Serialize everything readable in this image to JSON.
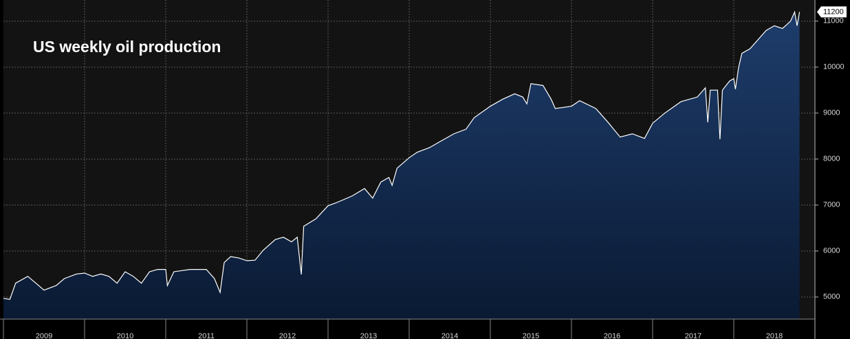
{
  "chart_data": {
    "type": "area",
    "title": "US weekly oil production",
    "x": [
      2009.0,
      2009.08,
      2009.15,
      2009.3,
      2009.4,
      2009.5,
      2009.65,
      2009.75,
      2009.9,
      2010.0,
      2010.1,
      2010.2,
      2010.3,
      2010.4,
      2010.5,
      2010.6,
      2010.7,
      2010.8,
      2010.9,
      2011.0,
      2011.02,
      2011.1,
      2011.3,
      2011.5,
      2011.6,
      2011.67,
      2011.72,
      2011.8,
      2011.9,
      2012.0,
      2012.1,
      2012.2,
      2012.35,
      2012.45,
      2012.55,
      2012.62,
      2012.67,
      2012.7,
      2012.85,
      2013.0,
      2013.1,
      2013.3,
      2013.45,
      2013.55,
      2013.65,
      2013.75,
      2013.79,
      2013.85,
      2014.0,
      2014.1,
      2014.25,
      2014.4,
      2014.55,
      2014.7,
      2014.8,
      2015.0,
      2015.15,
      2015.3,
      2015.4,
      2015.45,
      2015.5,
      2015.65,
      2015.75,
      2015.8,
      2016.0,
      2016.1,
      2016.3,
      2016.45,
      2016.6,
      2016.75,
      2016.9,
      2017.0,
      2017.15,
      2017.35,
      2017.55,
      2017.65,
      2017.68,
      2017.71,
      2017.8,
      2017.83,
      2017.86,
      2017.95,
      2018.0,
      2018.02,
      2018.06,
      2018.1,
      2018.2,
      2018.3,
      2018.4,
      2018.5,
      2018.6,
      2018.7,
      2018.75,
      2018.78,
      2018.81
    ],
    "series": [
      {
        "color": "#ffffff",
        "fill": "#1b3560",
        "values": [
          4970,
          4950,
          5300,
          5450,
          5300,
          5150,
          5250,
          5400,
          5500,
          5520,
          5450,
          5500,
          5450,
          5300,
          5550,
          5450,
          5300,
          5550,
          5600,
          5600,
          5250,
          5550,
          5600,
          5600,
          5400,
          5100,
          5750,
          5880,
          5850,
          5790,
          5800,
          6015,
          6250,
          6300,
          6200,
          6300,
          5490,
          6540,
          6700,
          6985,
          7050,
          7200,
          7360,
          7150,
          7500,
          7600,
          7430,
          7800,
          8030,
          8150,
          8250,
          8400,
          8550,
          8650,
          8900,
          9150,
          9300,
          9420,
          9350,
          9200,
          9640,
          9600,
          9300,
          9100,
          9150,
          9270,
          9100,
          8800,
          8480,
          8550,
          8450,
          8780,
          9000,
          9250,
          9350,
          9550,
          8800,
          9500,
          9500,
          8430,
          9500,
          9700,
          9750,
          9520,
          10000,
          10300,
          10400,
          10600,
          10800,
          10900,
          10840,
          11000,
          11200,
          10900,
          11200
        ]
      }
    ],
    "xlim": [
      2009,
      2019
    ],
    "xticks": [
      2009,
      2010,
      2011,
      2012,
      2013,
      2014,
      2015,
      2016,
      2017,
      2018
    ],
    "ylim": [
      4520,
      11460
    ],
    "yticks": [
      5000,
      6000,
      7000,
      8000,
      9000,
      10000,
      11000
    ],
    "grid": true
  }
}
